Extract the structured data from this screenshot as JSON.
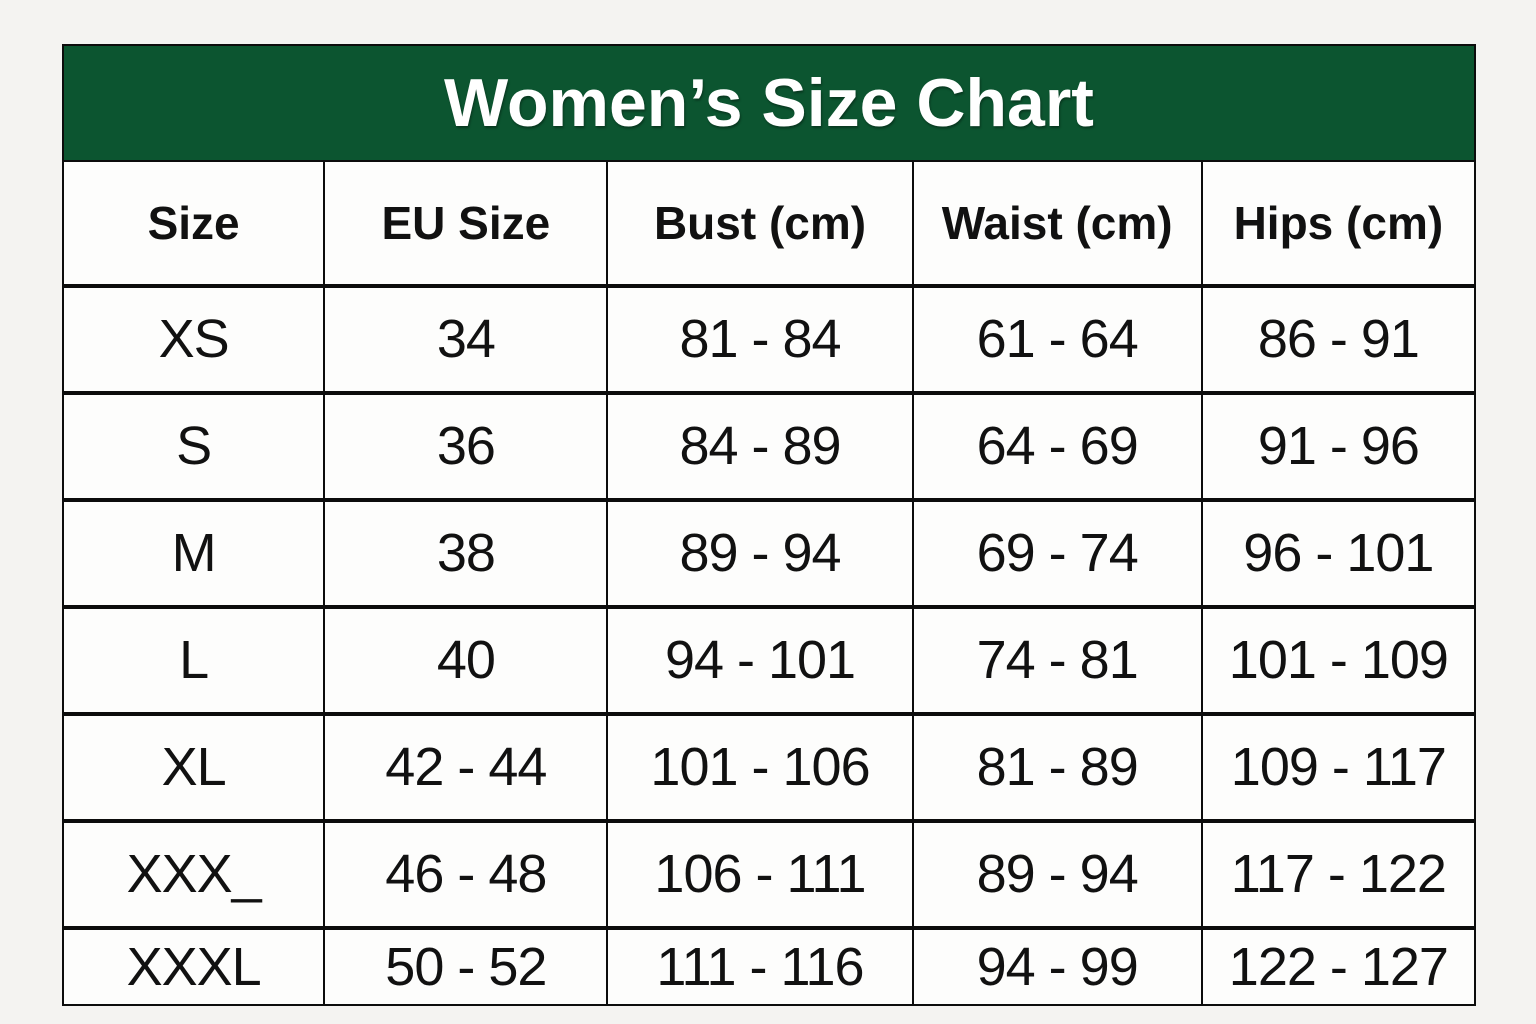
{
  "title": "Women’s Size Chart",
  "colors": {
    "title_bar_bg": "#0c5530",
    "title_text": "#ffffff",
    "border": "#0c0c0c",
    "cell_bg": "#fdfdfc",
    "page_bg": "#f4f3f1"
  },
  "chart_data": {
    "type": "table",
    "title": "Women’s Size Chart",
    "columns": [
      "Size",
      "EU Size",
      "Bust (cm)",
      "Waist (cm)",
      "Hips (cm)"
    ],
    "rows": [
      [
        "XS",
        "34",
        "81 - 84",
        "61 - 64",
        "86 - 91"
      ],
      [
        "S",
        "36",
        "84 - 89",
        "64 - 69",
        "91 - 96"
      ],
      [
        "M",
        "38",
        "89 - 94",
        "69 - 74",
        "96 - 101"
      ],
      [
        "L",
        "40",
        "94 - 101",
        "74 - 81",
        "101 - 109"
      ],
      [
        "XL",
        "42 - 44",
        "101 - 106",
        "81 - 89",
        "109 - 117"
      ],
      [
        "XXX_",
        "46 - 48",
        "106 - 111",
        "89 - 94",
        "117 - 122"
      ],
      [
        "XXXL",
        "50 - 52",
        "111 - 116",
        "94 - 99",
        "122 - 127"
      ]
    ]
  }
}
